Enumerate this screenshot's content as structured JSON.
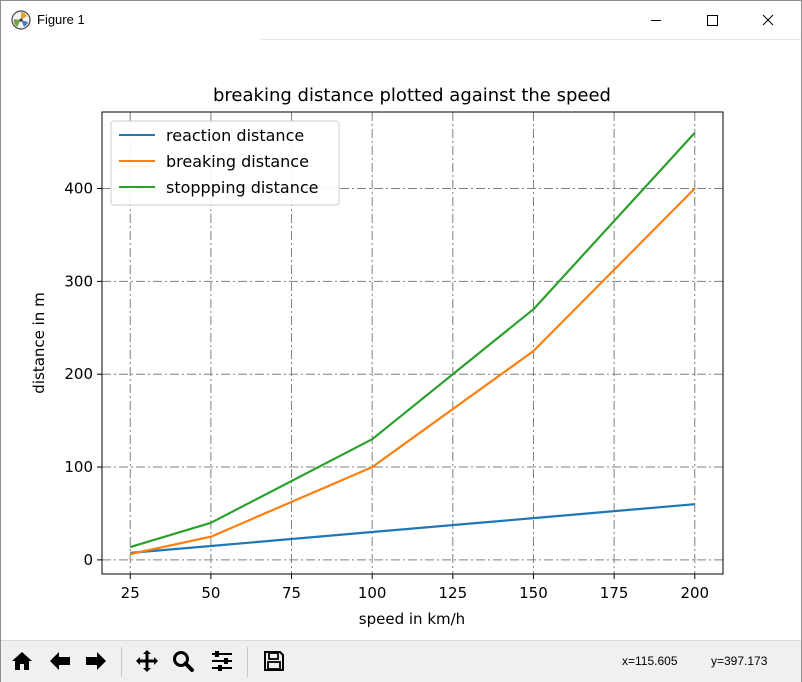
{
  "window": {
    "title": "Figure 1"
  },
  "toolbar": {
    "buttons": [
      "home-icon",
      "back-icon",
      "forward-icon",
      "pan-icon",
      "zoom-icon",
      "configure-subplots-icon",
      "save-icon"
    ],
    "coord_x": "x=115.605",
    "coord_y": "y=397.173"
  },
  "chart_data": {
    "type": "line",
    "title": "breaking distance plotted against the speed",
    "xlabel": "speed in km/h",
    "ylabel": "distance in m",
    "x": [
      25,
      50,
      100,
      150,
      200
    ],
    "xticks": [
      25,
      50,
      75,
      100,
      125,
      150,
      175,
      200
    ],
    "yticks": [
      0,
      100,
      200,
      300,
      400
    ],
    "xlim": [
      16.25,
      208.75
    ],
    "ylim": [
      -15.2,
      482.45
    ],
    "grid": true,
    "legend_position": "upper left",
    "series": [
      {
        "name": "reaction distance",
        "color": "#1f77b4",
        "values": [
          7.5,
          15,
          30,
          45,
          60
        ]
      },
      {
        "name": "breaking distance",
        "color": "#ff7f0e",
        "values": [
          6.25,
          25,
          100,
          225,
          400
        ]
      },
      {
        "name": "stoppping distance",
        "color": "#2ca02c",
        "values": [
          13.75,
          40,
          130,
          270,
          460
        ]
      }
    ]
  }
}
